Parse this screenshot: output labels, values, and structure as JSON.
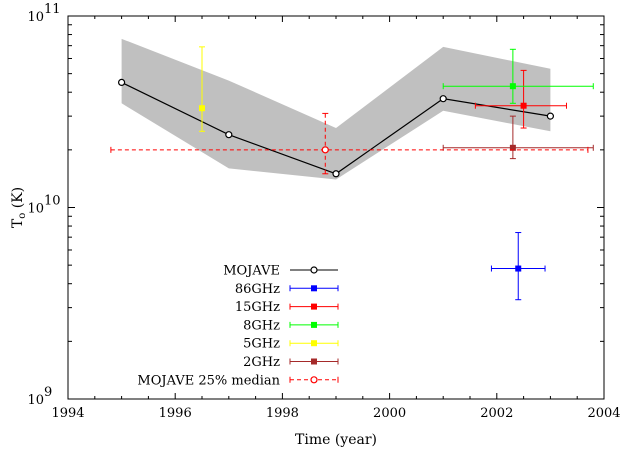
{
  "chart_data": {
    "type": "scatter",
    "xlabel": "Time (year)",
    "ylabel_main": "T",
    "ylabel_sub": "o",
    "ylabel_unit": " (K)",
    "xlim": [
      1994,
      2004
    ],
    "ylim": [
      1000000000,
      100000000000
    ],
    "yscale": "log",
    "grid": false,
    "legend_position": "bottom-left",
    "x_ticks": [
      1994,
      1996,
      1998,
      2000,
      2002,
      2004
    ],
    "x_tick_labels": [
      "1994",
      "1996",
      "1998",
      "2000",
      "2002",
      "2004"
    ],
    "y_ticks": [
      {
        "value": 1000000000,
        "mantissa": "10",
        "exp": "9"
      },
      {
        "value": 10000000000,
        "mantissa": "10",
        "exp": "10"
      },
      {
        "value": 100000000000,
        "mantissa": "10",
        "exp": "11"
      }
    ],
    "band": {
      "color": "#c0c0c0",
      "x": [
        1995,
        1997,
        1999,
        2001,
        2003
      ],
      "upper": [
        76000000000,
        46000000000,
        26000000000,
        69000000000,
        53000000000
      ],
      "lower": [
        35000000000,
        16000000000,
        14000000000,
        32000000000,
        25000000000
      ]
    },
    "series": [
      {
        "name": "MOJAVE",
        "color": "#000000",
        "marker": "open-circle",
        "line": "solid",
        "points": [
          {
            "x": 1995,
            "y": 45000000000
          },
          {
            "x": 1997,
            "y": 24000000000
          },
          {
            "x": 1999,
            "y": 15000000000
          },
          {
            "x": 2001,
            "y": 37000000000
          },
          {
            "x": 2003,
            "y": 30000000000
          }
        ]
      },
      {
        "name": "86GHz",
        "color": "#0000ff",
        "marker": "filled-square",
        "points": [
          {
            "x": 2002.4,
            "y": 4800000000,
            "xerr": [
              2001.9,
              2002.9
            ],
            "yerr": [
              3300000000,
              7400000000
            ]
          }
        ]
      },
      {
        "name": "15GHz",
        "color": "#ff0000",
        "marker": "filled-square",
        "points": [
          {
            "x": 2002.5,
            "y": 34000000000,
            "xerr": [
              2001.6,
              2003.3
            ],
            "yerr": [
              26000000000,
              52000000000
            ]
          }
        ]
      },
      {
        "name": "8GHz",
        "color": "#00ff00",
        "marker": "filled-square",
        "points": [
          {
            "x": 2002.3,
            "y": 43000000000,
            "xerr": [
              2001,
              2003.8
            ],
            "yerr": [
              35000000000,
              67000000000
            ]
          }
        ]
      },
      {
        "name": "5GHz",
        "color": "#ffff00",
        "marker": "filled-square",
        "points": [
          {
            "x": 1996.5,
            "y": 33000000000,
            "xerr": [
              1996.5,
              1996.5
            ],
            "yerr": [
              25000000000,
              69000000000
            ]
          }
        ]
      },
      {
        "name": "2GHz",
        "color": "#a52a2a",
        "marker": "filled-square",
        "points": [
          {
            "x": 2002.3,
            "y": 20500000000,
            "xerr": [
              2001,
              2003.8
            ],
            "yerr": [
              18000000000,
              30000000000
            ]
          }
        ]
      },
      {
        "name": "MOJAVE 25% median",
        "color": "#ff0000",
        "marker": "open-circle",
        "line": "dashed",
        "points": [
          {
            "x": 1998.8,
            "y": 20000000000,
            "xerr": [
              1994.8,
              2003.7
            ],
            "yerr": [
              15000000000,
              31000000000
            ]
          }
        ]
      }
    ]
  }
}
